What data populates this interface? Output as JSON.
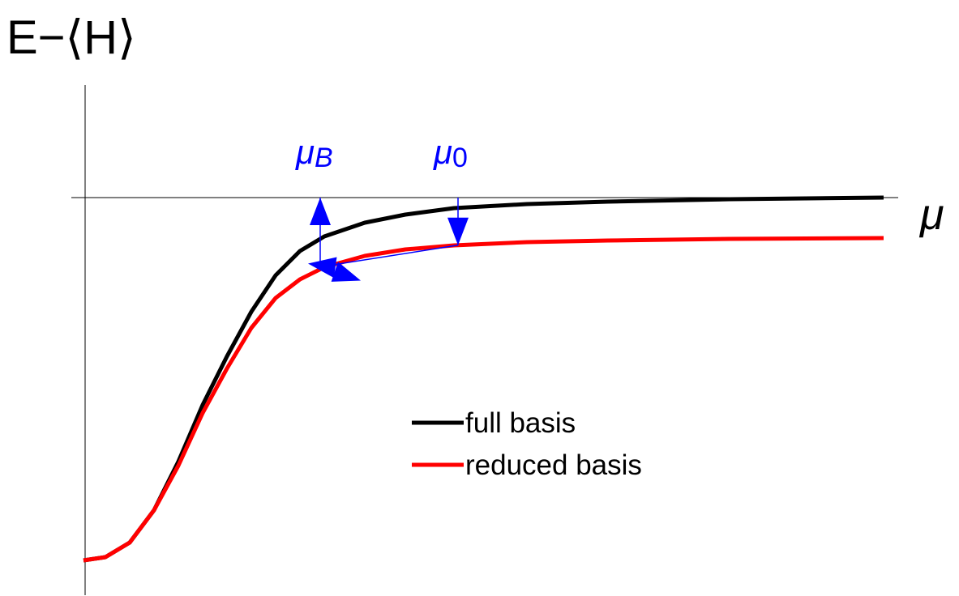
{
  "chart_data": {
    "type": "line",
    "y_label": "E−⟨H⟩",
    "x_label": "μ",
    "x": [
      -0.02,
      0.25,
      0.55,
      0.85,
      1.15,
      1.45,
      1.75,
      2.05,
      2.35,
      2.65,
      2.95,
      3.45,
      3.95,
      4.55,
      5.45,
      6.45,
      7.95,
      9.85
    ],
    "series": [
      {
        "name": "full basis",
        "color": "#000000",
        "values": [
          -4.48,
          -4.44,
          -4.26,
          -3.86,
          -3.26,
          -2.56,
          -1.96,
          -1.41,
          -0.96,
          -0.66,
          -0.48,
          -0.31,
          -0.21,
          -0.13,
          -0.08,
          -0.05,
          -0.02,
          0
        ]
      },
      {
        "name": "reduced basis",
        "color": "#ff0000",
        "values": [
          -4.48,
          -4.44,
          -4.26,
          -3.86,
          -3.31,
          -2.66,
          -2.11,
          -1.61,
          -1.24,
          -1.01,
          -0.86,
          -0.72,
          -0.64,
          -0.59,
          -0.55,
          -0.53,
          -0.51,
          -0.5
        ]
      }
    ],
    "annotations": [
      {
        "symbol": "μ",
        "sub": "B",
        "x": 2.9,
        "color": "#0000ff"
      },
      {
        "symbol": "μ",
        "sub": "0",
        "x": 4.6,
        "color": "#0000ff"
      }
    ],
    "xlim": [
      -0.17,
      10.03
    ],
    "ylim": [
      -4.91,
      1.39
    ],
    "grid": false
  }
}
